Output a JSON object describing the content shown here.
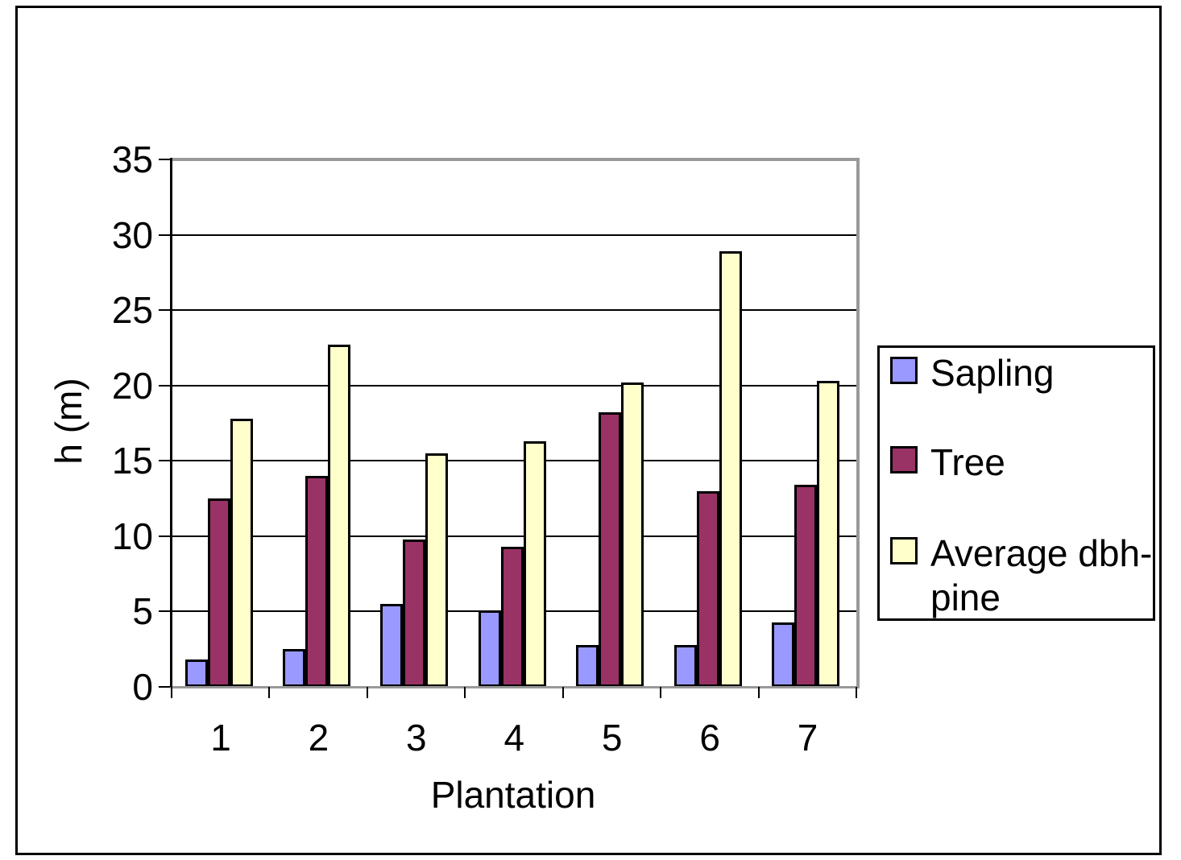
{
  "window": {
    "background_color": "#FFFFFF",
    "border_color": "#000000"
  },
  "chart_data": {
    "type": "bar",
    "title": "",
    "xlabel": "Plantation",
    "ylabel": "h (m)",
    "ylim": [
      0,
      35
    ],
    "yticks": [
      0,
      5,
      10,
      15,
      20,
      25,
      30,
      35
    ],
    "grid": true,
    "gridline_color": "#000000",
    "plot_border_color": "#999999",
    "legend_position": "right",
    "categories": [
      "1",
      "2",
      "3",
      "4",
      "5",
      "6",
      "7"
    ],
    "series": [
      {
        "name": "Sapling",
        "color": "#9999FF",
        "values": [
          1.8,
          2.5,
          5.5,
          5.1,
          2.8,
          2.8,
          4.3
        ]
      },
      {
        "name": "Tree",
        "color": "#993366",
        "values": [
          12.5,
          14,
          9.8,
          9.3,
          18.2,
          13,
          13.4
        ]
      },
      {
        "name": "Average dbh-pine",
        "color": "#FFFFCC",
        "values": [
          17.8,
          22.7,
          15.5,
          16.3,
          20.2,
          28.9,
          20.3
        ]
      }
    ]
  }
}
